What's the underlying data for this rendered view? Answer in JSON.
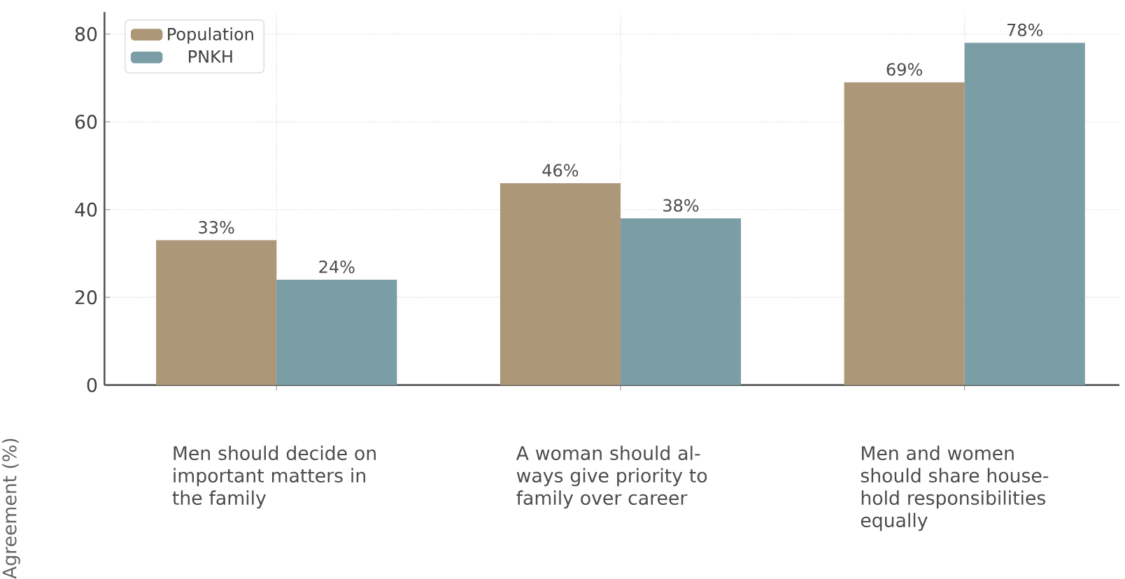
{
  "chart_data": {
    "type": "bar",
    "ylabel": "Agreement (%)",
    "categories": [
      "Men should decide on important matters in the family",
      "A woman should al-ways give priority to family over career",
      "Men and women should share house-hold responsibilities equally"
    ],
    "series": [
      {
        "name": "Population",
        "color": "#ad9779",
        "values": [
          33,
          46,
          69
        ],
        "value_labels": [
          "33%",
          "46%",
          "69%"
        ]
      },
      {
        "name": "PNKH",
        "color": "#7a9da6",
        "values": [
          24,
          38,
          78
        ],
        "value_labels": [
          "24%",
          "38%",
          "78%"
        ]
      }
    ],
    "ylim": [
      0,
      85
    ],
    "yticks": [
      0,
      20,
      40,
      60,
      80
    ],
    "grid": true,
    "legend": "top left"
  }
}
